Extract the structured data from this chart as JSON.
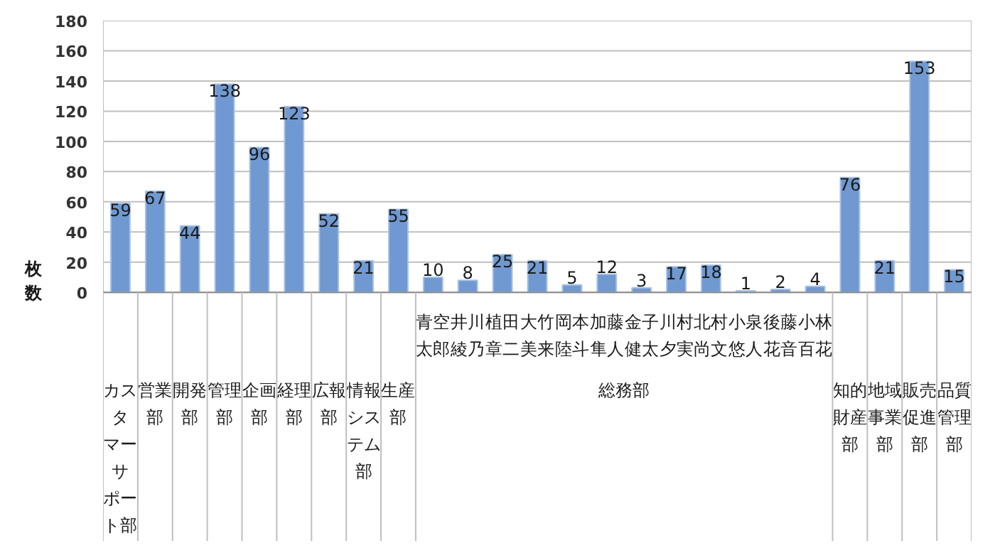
{
  "chart_data": {
    "type": "bar",
    "ylabel": "枚数",
    "categories": [
      "カスタマーサポート部",
      "営業部",
      "開発部",
      "管理部",
      "企画部",
      "経理部",
      "広報部",
      "情報システム部",
      "生産部",
      "青空太郎",
      "井川綾乃",
      "植田章二",
      "大竹美来",
      "岡本陸斗",
      "加藤隼人",
      "金子健太",
      "川村夕実",
      "北村尚文",
      "小泉悠人",
      "後藤花音",
      "小林百花",
      "知的財産部",
      "地域事業部",
      "販売促進部",
      "品質管理部"
    ],
    "values": [
      59,
      67,
      44,
      138,
      96,
      123,
      52,
      21,
      55,
      10,
      8,
      25,
      21,
      5,
      12,
      3,
      17,
      18,
      1,
      2,
      4,
      76,
      21,
      153,
      15
    ],
    "color": "#7099d1",
    "ylim": [
      0,
      180
    ],
    "yticks": [
      0,
      20,
      40,
      60,
      80,
      100,
      120,
      140,
      160,
      180
    ],
    "grid": "y",
    "data_labels": true,
    "annotations": [
      "総務部"
    ]
  }
}
